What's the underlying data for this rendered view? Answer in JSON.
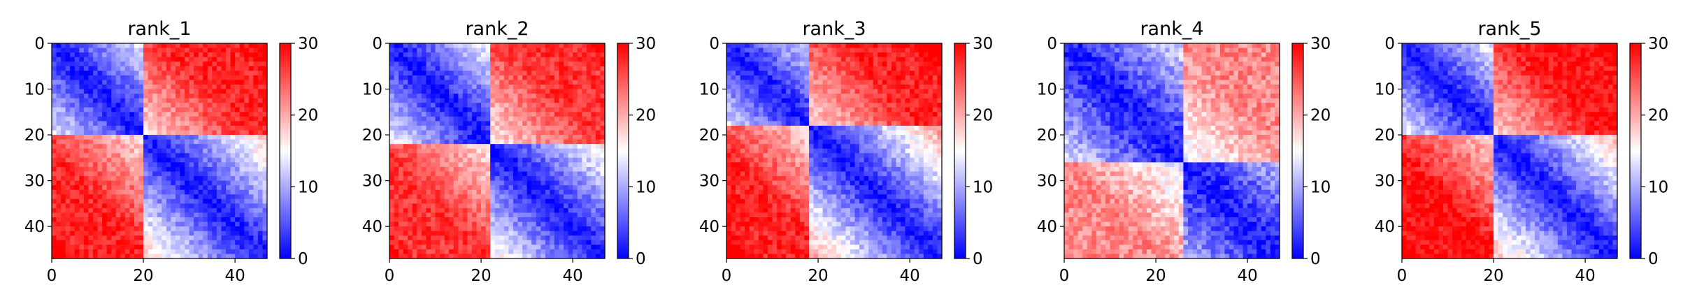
{
  "chart_data": {
    "type": "heatmap",
    "colormap": "bwr",
    "colors": {
      "low": "#0000ff",
      "mid": "#ffffff",
      "high": "#ff0000"
    },
    "grid": false,
    "n": 47,
    "vmin": 0,
    "vmax": 30,
    "colorbar_ticks": [
      "0",
      "10",
      "20",
      "30"
    ],
    "colorbar_tick_values": [
      0,
      10,
      20,
      30
    ],
    "x_ticks": [
      "0",
      "20",
      "40"
    ],
    "x_tick_values": [
      0,
      20,
      40
    ],
    "y_ticks": [
      "0",
      "10",
      "20",
      "30",
      "40"
    ],
    "y_tick_values": [
      0,
      10,
      20,
      30,
      40
    ],
    "panels": [
      {
        "title": "rank_1",
        "slope": 0.42,
        "domain_block_size": 20,
        "off_block_value": 28,
        "noise": 2.5
      },
      {
        "title": "rank_2",
        "slope": 0.4,
        "domain_block_size": 22,
        "off_block_value": 27,
        "noise": 2.5
      },
      {
        "title": "rank_3",
        "slope": 0.44,
        "domain_block_size": 18,
        "off_block_value": 28,
        "noise": 2.5
      },
      {
        "title": "rank_4",
        "slope": 0.3,
        "domain_block_size": 26,
        "off_block_value": 22,
        "noise": 3.0
      },
      {
        "title": "rank_5",
        "slope": 0.43,
        "domain_block_size": 20,
        "off_block_value": 29,
        "noise": 2.5
      }
    ]
  }
}
